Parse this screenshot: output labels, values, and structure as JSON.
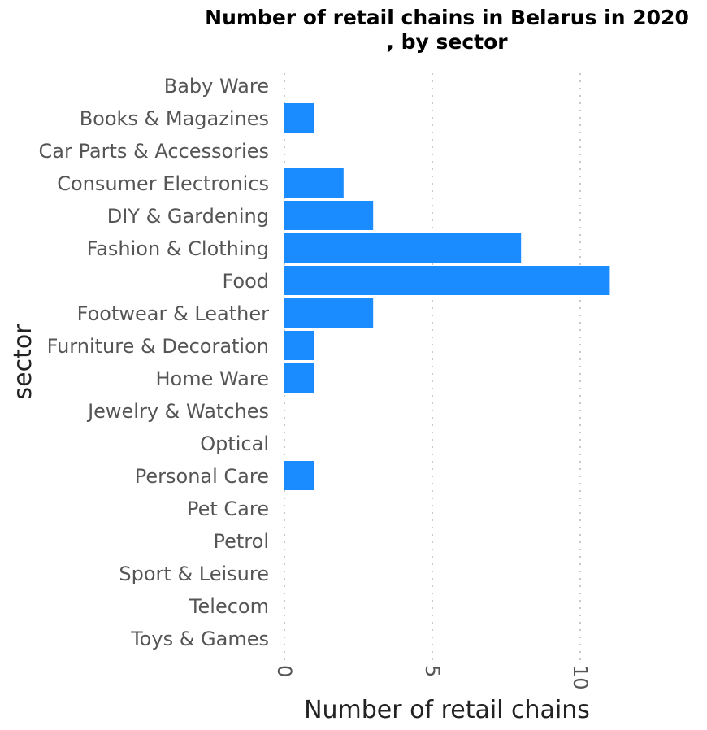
{
  "chart_data": {
    "type": "bar",
    "orientation": "horizontal",
    "title_lines": [
      "Number of retail chains in Belarus in 2020",
      ", by sector"
    ],
    "xlabel": "Number of retail chains",
    "ylabel": "sector",
    "categories": [
      "Baby Ware",
      "Books & Magazines",
      "Car Parts & Accessories",
      "Consumer Electronics",
      "DIY & Gardening",
      "Fashion & Clothing",
      "Food",
      "Footwear & Leather",
      "Furniture & Decoration",
      "Home Ware",
      "Jewelry & Watches",
      "Optical",
      "Personal Care",
      "Pet Care",
      "Petrol",
      "Sport & Leisure",
      "Telecom",
      "Toys & Games"
    ],
    "values": [
      0,
      1,
      0,
      2,
      3,
      8,
      11,
      3,
      1,
      1,
      0,
      0,
      1,
      0,
      0,
      0,
      0,
      0
    ],
    "xticks": [
      0,
      5,
      10
    ],
    "xlim": [
      0,
      11.8
    ],
    "grid": "vertical dotted",
    "bar_color": "#1a8cff"
  }
}
